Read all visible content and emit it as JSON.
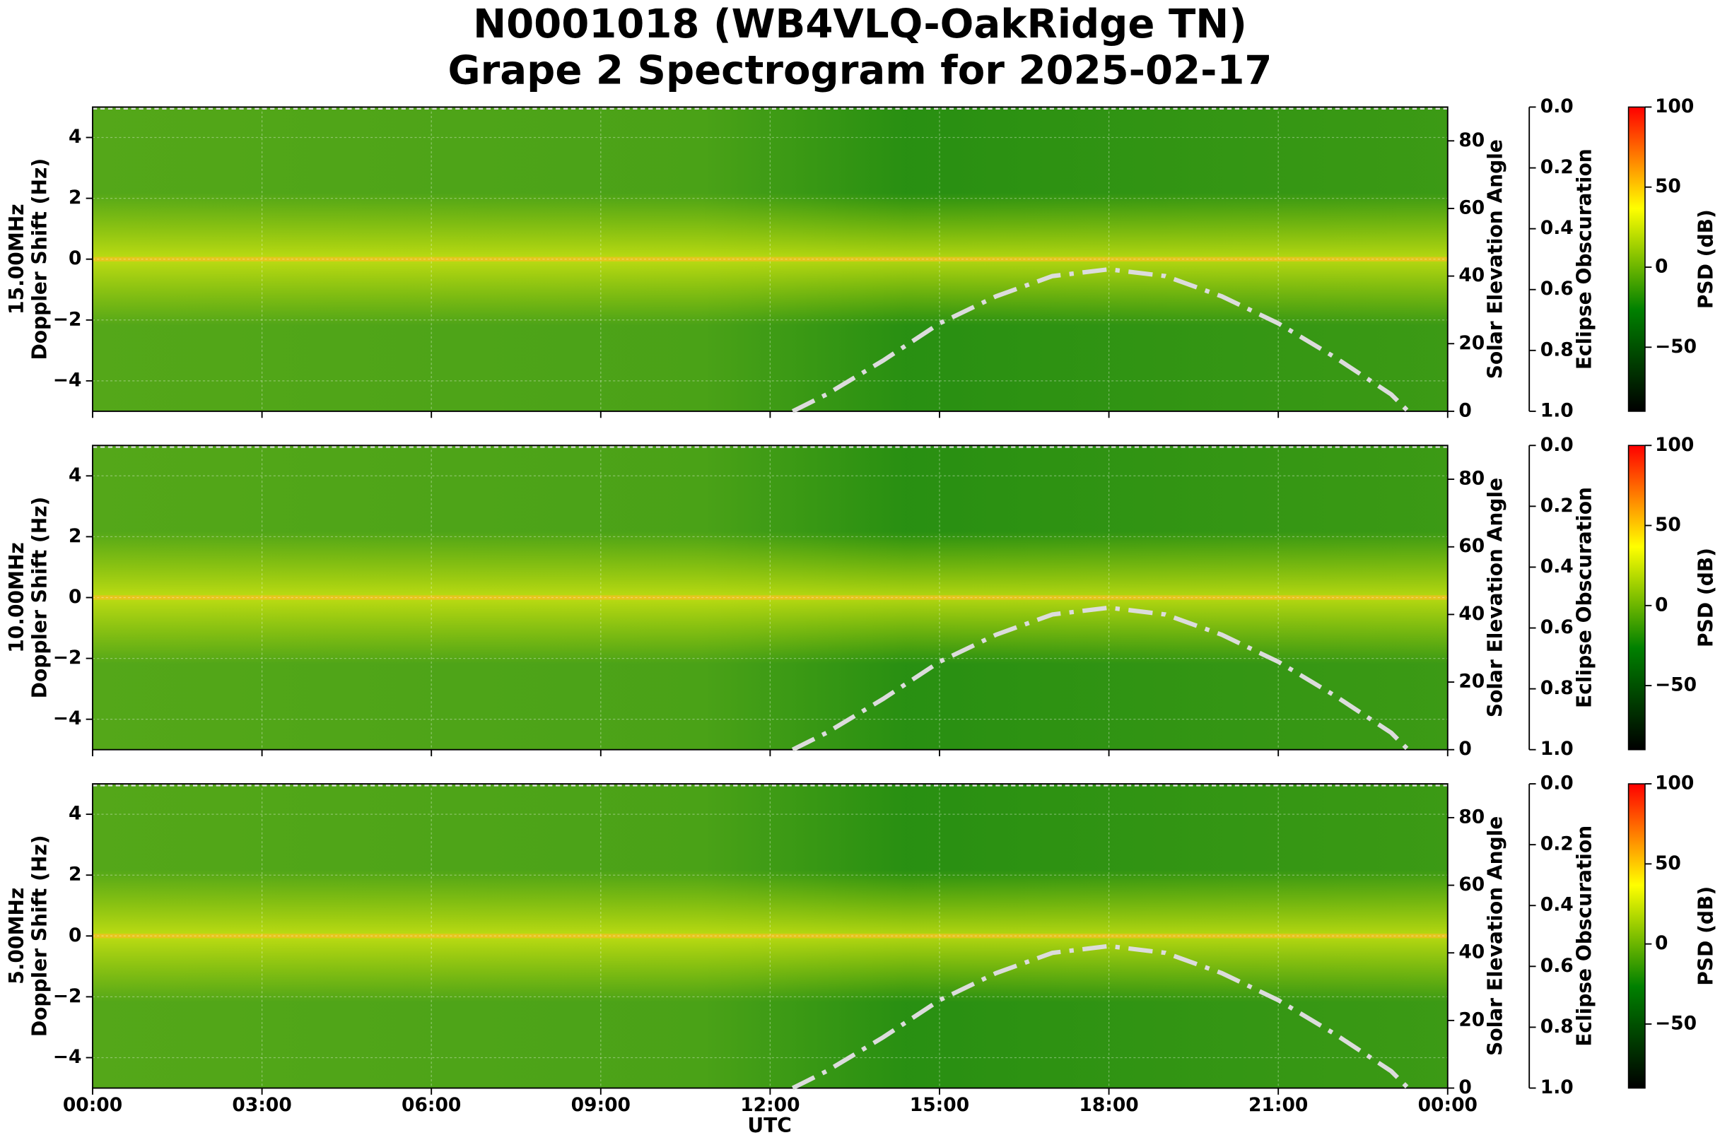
{
  "figure": {
    "title": "N0001018 (WB4VLQ-OakRidge TN)",
    "subtitle": "Grape 2 Spectrogram for 2025-02-17",
    "xlabel": "UTC",
    "xlim": [
      0,
      24
    ],
    "xticks": [
      {
        "value": 0,
        "label": "00:00"
      },
      {
        "value": 3,
        "label": "03:00"
      },
      {
        "value": 6,
        "label": "06:00"
      },
      {
        "value": 9,
        "label": "09:00"
      },
      {
        "value": 12,
        "label": "12:00"
      },
      {
        "value": 15,
        "label": "15:00"
      },
      {
        "value": 18,
        "label": "18:00"
      },
      {
        "value": 21,
        "label": "21:00"
      },
      {
        "value": 24,
        "label": "00:00"
      }
    ]
  },
  "chart_data": [
    {
      "type": "spectrogram",
      "frequency": "15.00MHz",
      "ylabel": "Doppler Shift (Hz)",
      "ylim": [
        -5,
        5
      ],
      "yticks": [
        {
          "value": -4,
          "label": "−4"
        },
        {
          "value": -2,
          "label": "−2"
        },
        0,
        2,
        4
      ],
      "y2label": "Solar Elevation Angle",
      "y2lim": [
        0,
        90
      ],
      "y2ticks": [
        0,
        20,
        40,
        60,
        80
      ],
      "eclipse_label": "Eclipse Obscuration",
      "eclipse_lim": [
        1,
        0
      ],
      "eclipse_ticks": [
        {
          "value": 0,
          "label": "0.0"
        },
        0.2,
        0.4,
        0.6,
        0.8,
        {
          "value": 1,
          "label": "1.0"
        }
      ],
      "colorbar_label": "PSD (dB)",
      "clim": [
        -90,
        100
      ],
      "cticks": [
        {
          "value": -50,
          "label": "−50"
        },
        0,
        50,
        100
      ],
      "colormap": [
        "#000000",
        "#008000",
        "#ffff00",
        "#ff0000"
      ],
      "grid": true,
      "x": [
        12.4,
        13,
        14,
        15,
        16,
        17,
        18,
        19,
        20,
        21,
        22,
        23,
        23.3
      ],
      "series": [
        {
          "color": "#dcdcdc",
          "axis": "y2",
          "values": [
            0,
            5,
            15,
            26,
            34,
            40,
            42,
            40,
            34,
            26,
            16,
            5,
            0
          ]
        }
      ]
    },
    {
      "type": "spectrogram",
      "frequency": "10.00MHz",
      "ylabel": "Doppler Shift (Hz)",
      "ylim": [
        -5,
        5
      ],
      "yticks": [
        {
          "value": -4,
          "label": "−4"
        },
        {
          "value": -2,
          "label": "−2"
        },
        0,
        2,
        4
      ],
      "y2label": "Solar Elevation Angle",
      "y2lim": [
        0,
        90
      ],
      "y2ticks": [
        0,
        20,
        40,
        60,
        80
      ],
      "eclipse_label": "Eclipse Obscuration",
      "eclipse_lim": [
        1,
        0
      ],
      "eclipse_ticks": [
        {
          "value": 0,
          "label": "0.0"
        },
        0.2,
        0.4,
        0.6,
        0.8,
        {
          "value": 1,
          "label": "1.0"
        }
      ],
      "colorbar_label": "PSD (dB)",
      "clim": [
        -90,
        100
      ],
      "cticks": [
        {
          "value": -50,
          "label": "−50"
        },
        0,
        50,
        100
      ],
      "colormap": [
        "#000000",
        "#008000",
        "#ffff00",
        "#ff0000"
      ],
      "grid": true,
      "x": [
        12.4,
        13,
        14,
        15,
        16,
        17,
        18,
        19,
        20,
        21,
        22,
        23,
        23.3
      ],
      "series": [
        {
          "color": "#dcdcdc",
          "axis": "y2",
          "values": [
            0,
            5,
            15,
            26,
            34,
            40,
            42,
            40,
            34,
            26,
            16,
            5,
            0
          ]
        }
      ]
    },
    {
      "type": "spectrogram",
      "frequency": "5.00MHz",
      "ylabel": "Doppler Shift (Hz)",
      "ylim": [
        -5,
        5
      ],
      "yticks": [
        {
          "value": -4,
          "label": "−4"
        },
        {
          "value": -2,
          "label": "−2"
        },
        0,
        2,
        4
      ],
      "y2label": "Solar Elevation Angle",
      "y2lim": [
        0,
        90
      ],
      "y2ticks": [
        0,
        20,
        40,
        60,
        80
      ],
      "eclipse_label": "Eclipse Obscuration",
      "eclipse_lim": [
        1,
        0
      ],
      "eclipse_ticks": [
        {
          "value": 0,
          "label": "0.0"
        },
        0.2,
        0.4,
        0.6,
        0.8,
        {
          "value": 1,
          "label": "1.0"
        }
      ],
      "colorbar_label": "PSD (dB)",
      "clim": [
        -90,
        100
      ],
      "cticks": [
        {
          "value": -50,
          "label": "−50"
        },
        0,
        50,
        100
      ],
      "colormap": [
        "#000000",
        "#008000",
        "#ffff00",
        "#ff0000"
      ],
      "grid": true,
      "x": [
        12.4,
        13,
        14,
        15,
        16,
        17,
        18,
        19,
        20,
        21,
        22,
        23,
        23.3
      ],
      "series": [
        {
          "color": "#dcdcdc",
          "axis": "y2",
          "values": [
            0,
            5,
            15,
            26,
            34,
            40,
            42,
            40,
            34,
            26,
            16,
            5,
            0
          ]
        }
      ]
    }
  ]
}
